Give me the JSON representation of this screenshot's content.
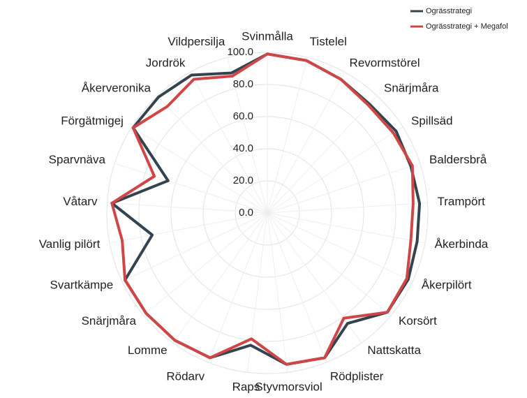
{
  "chart_data": {
    "type": "radar",
    "categories": [
      "Svinmålla",
      "Tistelel",
      "Revormstörel",
      "Snärjmåra",
      "Spillsäd",
      "Baldersbrå",
      "Trampört",
      "Åkerbinda",
      "Åkerpilört",
      "Korsört",
      "Nattskatta",
      "Rödplister",
      "Styvmorsviol",
      "Raps",
      "Rödarv",
      "Lomme",
      "Snärjmåra",
      "Svartkämpe",
      "Vanlig pilört",
      "Våtarv",
      "Sparvnäva",
      "Förgätmigej",
      "Åkerveronika",
      "Jordrök",
      "Vildpersilja"
    ],
    "series": [
      {
        "name": "Ogrässtrategi",
        "color": "#33434f",
        "values": [
          99,
          98,
          95,
          93,
          95,
          94,
          95,
          95,
          97,
          97,
          85,
          97,
          95,
          83,
          97,
          98,
          98,
          98,
          73,
          97,
          65,
          99,
          99,
          98,
          90
        ]
      },
      {
        "name": "Ogrässtrategi + Megafol",
        "color": "#d04545",
        "values": [
          99,
          98,
          95,
          92,
          93,
          95,
          91,
          91,
          96,
          97,
          81,
          97,
          95,
          79,
          97,
          98,
          98,
          98,
          92,
          97,
          74,
          99,
          91,
          95,
          88
        ]
      }
    ],
    "ylim": [
      0,
      100
    ],
    "yticks": [
      {
        "value": 0,
        "label": "0.0"
      },
      {
        "value": 20,
        "label": "20.0"
      },
      {
        "value": 40,
        "label": "40.0"
      },
      {
        "value": 60,
        "label": "60.0"
      },
      {
        "value": 80,
        "label": "80.0"
      },
      {
        "value": 100,
        "label": "100.0"
      }
    ],
    "grid": true,
    "legend": "top-right"
  }
}
